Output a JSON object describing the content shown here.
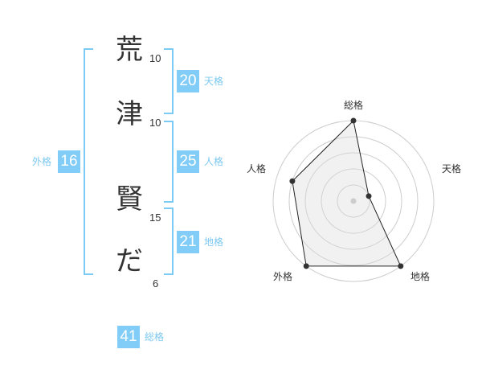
{
  "name_chars": [
    {
      "char": "荒",
      "strokes": "10"
    },
    {
      "char": "津",
      "strokes": "10"
    },
    {
      "char": "賢",
      "strokes": "15"
    },
    {
      "char": "だ",
      "strokes": "6"
    }
  ],
  "kaku": {
    "tenkaku": {
      "label": "天格",
      "value": "20"
    },
    "jinkaku": {
      "label": "人格",
      "value": "25"
    },
    "chikaku": {
      "label": "地格",
      "value": "21"
    },
    "gaikaku": {
      "label": "外格",
      "value": "16"
    },
    "soukaku": {
      "label": "総格",
      "value": "41"
    }
  },
  "colors": {
    "accent": "#82cdf7",
    "bracket": "#7ccbf5",
    "label": "#7cc8f0"
  },
  "chart_data": {
    "type": "radar",
    "axes": [
      "総格",
      "天格",
      "地格",
      "外格",
      "人格"
    ],
    "values": [
      5,
      1,
      5,
      5,
      4
    ],
    "range": [
      0,
      5
    ],
    "rings": 5
  }
}
